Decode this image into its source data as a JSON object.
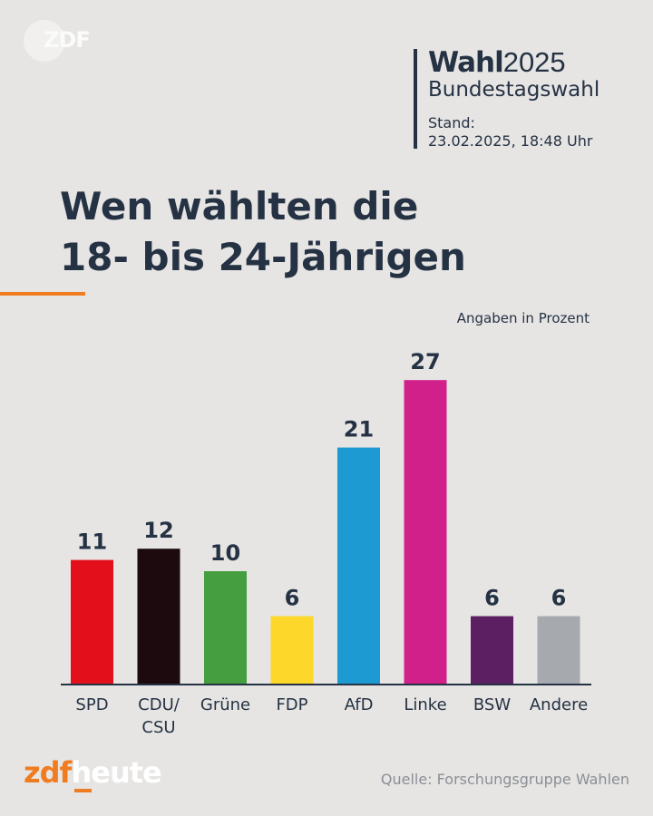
{
  "brand": {
    "logo_text": "ZDF",
    "footer_logo_a": "zdf",
    "footer_logo_b": "heute"
  },
  "header": {
    "wahl_bold": "Wahl",
    "wahl_year": "2025",
    "subtitle": "Bundestagswahl",
    "stand_label": "Stand:",
    "stand_value": "23.02.2025, 18:48 Uhr"
  },
  "title_line1": "Wen wählten die",
  "title_line2": "18- bis 24-Jährigen",
  "unit_note": "Angaben in Prozent",
  "source": "Quelle: Forschungsgruppe Wahlen",
  "colors": {
    "accent": "#f07c21",
    "text": "#253244",
    "background": "#e6e5e3"
  },
  "chart_data": {
    "type": "bar",
    "title": "Wen wählten die 18- bis 24-Jährigen",
    "xlabel": "",
    "ylabel": "Angaben in Prozent",
    "ylim": [
      0,
      27
    ],
    "grid": false,
    "categories": [
      "SPD",
      "CDU/ CSU",
      "Grüne",
      "FDP",
      "AfD",
      "Linke",
      "BSW",
      "Andere"
    ],
    "values": [
      11,
      12,
      10,
      6,
      21,
      27,
      6,
      6
    ],
    "colors": [
      "#e3101c",
      "#1d0a0e",
      "#459e3f",
      "#fdd72a",
      "#1e9ad2",
      "#d1208a",
      "#5b1f62",
      "#a6a9ad"
    ]
  }
}
